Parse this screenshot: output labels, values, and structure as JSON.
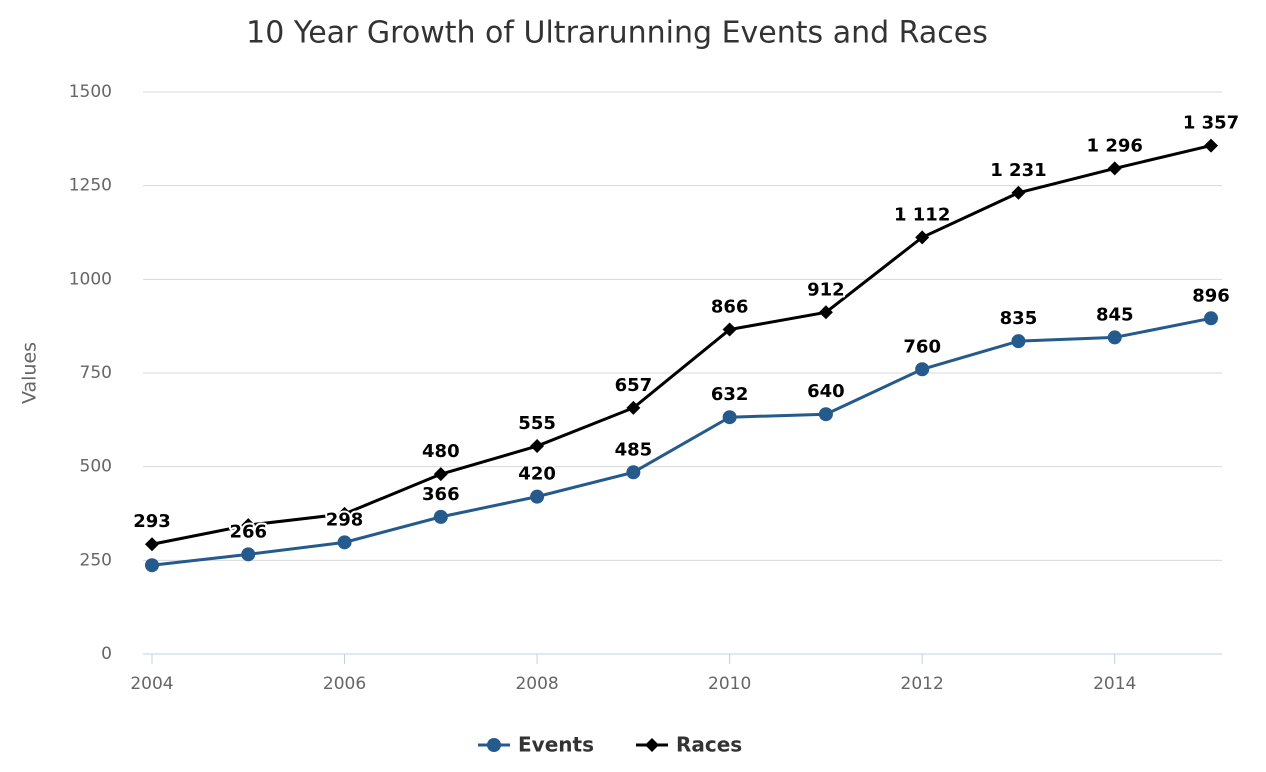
{
  "chart_data": {
    "type": "line",
    "title": "10 Year Growth of Ultrarunning Events and Races",
    "y_label": "Values",
    "x": [
      2004,
      2005,
      2006,
      2007,
      2008,
      2009,
      2010,
      2011,
      2012,
      2013,
      2014,
      2015
    ],
    "xlim": [
      2004,
      2015
    ],
    "xticks": [
      2004,
      2006,
      2008,
      2010,
      2012,
      2014
    ],
    "ylim": [
      0,
      1500
    ],
    "yticks": [
      0,
      250,
      500,
      750,
      1000,
      1250,
      1500
    ],
    "grid": true,
    "legend": "bottom",
    "series": [
      {
        "name": "Events",
        "color": "#255a8c",
        "marker": "circle",
        "values": [
          237,
          266,
          298,
          366,
          420,
          485,
          632,
          640,
          760,
          835,
          845,
          896
        ],
        "value_labels": [
          null,
          "266",
          "298",
          "366",
          "420",
          "485",
          "632",
          "640",
          "760",
          "835",
          "845",
          "896"
        ]
      },
      {
        "name": "Races",
        "color": "#000000",
        "marker": "diamond",
        "values": [
          293,
          344,
          374,
          480,
          555,
          657,
          866,
          912,
          1112,
          1231,
          1296,
          1357
        ],
        "value_labels": [
          "293",
          null,
          null,
          "480",
          "555",
          "657",
          "866",
          "912",
          "1 112",
          "1 231",
          "1 296",
          "1 357"
        ]
      }
    ]
  }
}
